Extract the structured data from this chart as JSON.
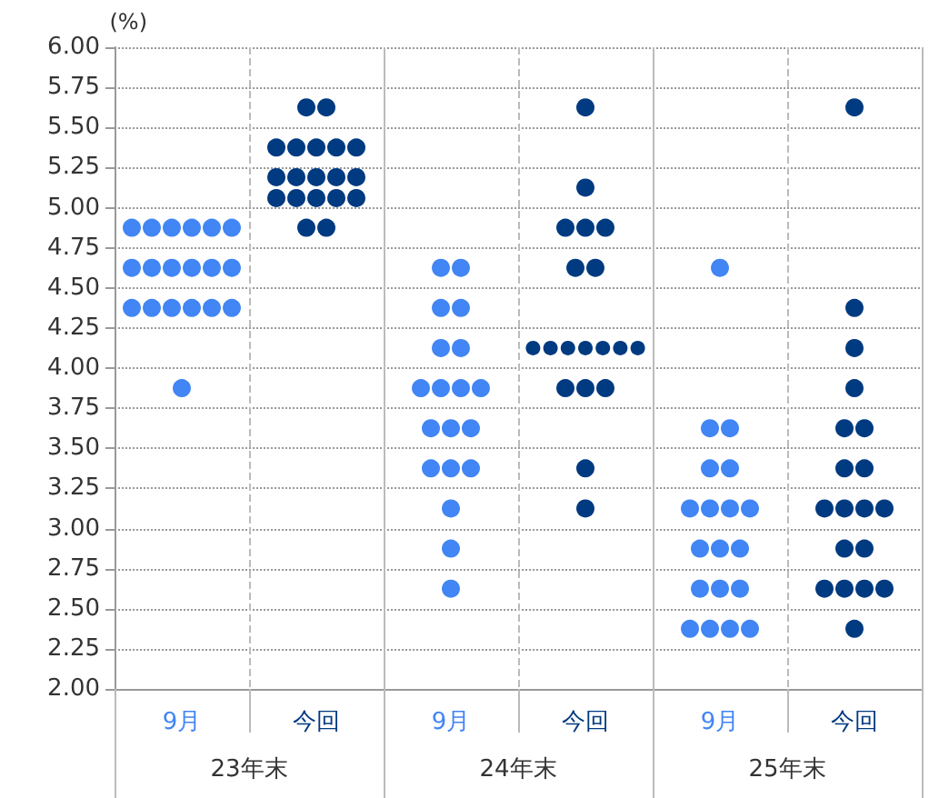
{
  "chart_data": {
    "type": "scatter",
    "ylabel": "(%)",
    "categories": [
      "23年末",
      "24年末",
      "25年末"
    ],
    "series": [
      {
        "name": "9月",
        "color": "#4285f4",
        "x": [
          "23年末",
          "23年末",
          "23年末",
          "23年末",
          "23年末",
          "23年末",
          "23年末",
          "23年末",
          "23年末",
          "23年末",
          "23年末",
          "23年末",
          "23年末",
          "23年末",
          "23年末",
          "23年末",
          "23年末",
          "23年末",
          "23年末",
          "24年末",
          "24年末",
          "24年末",
          "24年末",
          "24年末",
          "24年末",
          "24年末",
          "24年末",
          "24年末",
          "24年末",
          "24年末",
          "24年末",
          "24年末",
          "24年末",
          "24年末",
          "24年末",
          "24年末",
          "24年末",
          "24年末",
          "25年末",
          "25年末",
          "25年末",
          "25年末",
          "25年末",
          "25年末",
          "25年末",
          "25年末",
          "25年末",
          "25年末",
          "25年末",
          "25年末",
          "25年末",
          "25年末",
          "25年末",
          "25年末",
          "25年末",
          "25年末",
          "25年末"
        ],
        "values": [
          4.875,
          4.875,
          4.875,
          4.875,
          4.875,
          4.875,
          4.625,
          4.625,
          4.625,
          4.625,
          4.625,
          4.625,
          4.375,
          4.375,
          4.375,
          4.375,
          4.375,
          4.375,
          3.875,
          4.625,
          4.625,
          4.375,
          4.375,
          4.125,
          4.125,
          3.875,
          3.875,
          3.875,
          3.875,
          3.625,
          3.625,
          3.625,
          3.375,
          3.375,
          3.375,
          3.125,
          2.875,
          2.625,
          4.625,
          3.625,
          3.625,
          3.375,
          3.375,
          3.125,
          3.125,
          3.125,
          3.125,
          2.875,
          2.875,
          2.875,
          2.625,
          2.625,
          2.625,
          2.375,
          2.375,
          2.375,
          2.375
        ]
      },
      {
        "name": "今回",
        "color": "#003a80",
        "x": [
          "23年末",
          "23年末",
          "23年末",
          "23年末",
          "23年末",
          "23年末",
          "23年末",
          "23年末",
          "23年末",
          "23年末",
          "23年末",
          "23年末",
          "23年末",
          "23年末",
          "23年末",
          "23年末",
          "23年末",
          "23年末",
          "23年末",
          "24年末",
          "24年末",
          "24年末",
          "24年末",
          "24年末",
          "24年末",
          "24年末",
          "24年末",
          "24年末",
          "24年末",
          "24年末",
          "24年末",
          "24年末",
          "24年末",
          "24年末",
          "24年末",
          "24年末",
          "24年末",
          "24年末",
          "25年末",
          "25年末",
          "25年末",
          "25年末",
          "25年末",
          "25年末",
          "25年末",
          "25年末",
          "25年末",
          "25年末",
          "25年末",
          "25年末",
          "25年末",
          "25年末",
          "25年末",
          "25年末",
          "25年末",
          "25年末",
          "25年末"
        ],
        "values": [
          5.625,
          5.625,
          5.375,
          5.375,
          5.375,
          5.375,
          5.375,
          5.19,
          5.19,
          5.19,
          5.19,
          5.19,
          5.06,
          5.06,
          5.06,
          5.06,
          5.06,
          4.875,
          4.875,
          5.625,
          5.125,
          4.875,
          4.875,
          4.875,
          4.625,
          4.625,
          4.125,
          4.125,
          4.125,
          4.125,
          4.125,
          4.125,
          4.125,
          3.875,
          3.875,
          3.875,
          3.375,
          3.125,
          5.625,
          4.375,
          4.125,
          3.875,
          3.625,
          3.625,
          3.375,
          3.375,
          3.125,
          3.125,
          3.125,
          3.125,
          2.875,
          2.875,
          2.625,
          2.625,
          2.625,
          2.625,
          2.375
        ]
      }
    ],
    "ylim": [
      2,
      6
    ],
    "yticks": [
      {
        "value": 2,
        "label": "2.00"
      },
      {
        "value": 2.25,
        "label": "2.25"
      },
      {
        "value": 2.5,
        "label": "2.50"
      },
      {
        "value": 2.75,
        "label": "2.75"
      },
      {
        "value": 3,
        "label": "3.00"
      },
      {
        "value": 3.25,
        "label": "3.25"
      },
      {
        "value": 3.5,
        "label": "3.50"
      },
      {
        "value": 3.75,
        "label": "3.75"
      },
      {
        "value": 4,
        "label": "4.00"
      },
      {
        "value": 4.25,
        "label": "4.25"
      },
      {
        "value": 4.5,
        "label": "4.50"
      },
      {
        "value": 4.75,
        "label": "4.75"
      },
      {
        "value": 5,
        "label": "5.00"
      },
      {
        "value": 5.25,
        "label": "5.25"
      },
      {
        "value": 5.5,
        "label": "5.50"
      },
      {
        "value": 5.75,
        "label": "5.75"
      },
      {
        "value": 6,
        "label": "6.00"
      }
    ],
    "grid": true,
    "marker": "circle"
  }
}
